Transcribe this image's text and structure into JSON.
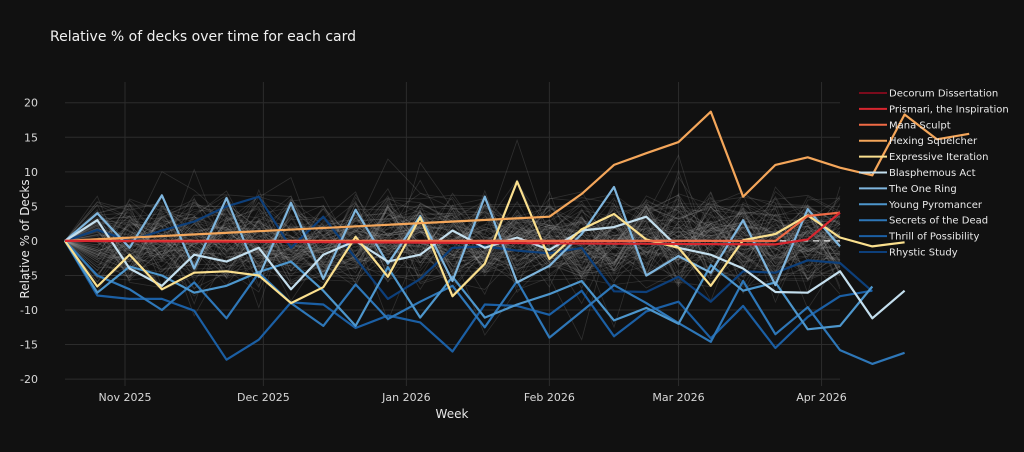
{
  "chart_data": {
    "type": "line",
    "title": "Relative  % of decks over time for each card",
    "xlabel": "Week",
    "ylabel": "Relative % of Decks",
    "x_start": "2025-10-19",
    "x_end": "2026-04-05",
    "xlim": [
      "2025-10-19",
      "2026-04-05"
    ],
    "ylim": [
      -21,
      23
    ],
    "x_ticks": [
      {
        "date": "2025-11-01",
        "label": "Nov 2025"
      },
      {
        "date": "2025-12-01",
        "label": "Dec 2025"
      },
      {
        "date": "2026-01-01",
        "label": "Jan 2026"
      },
      {
        "date": "2026-02-01",
        "label": "Feb 2026"
      },
      {
        "date": "2026-03-01",
        "label": "Mar 2026"
      },
      {
        "date": "2026-04-01",
        "label": "Apr 2026"
      }
    ],
    "y_ticks": [
      20,
      15,
      10,
      5,
      0,
      -5,
      -10,
      -15,
      -20
    ],
    "grid": true,
    "zero_line": "dashed",
    "legend_position": "right",
    "background_series": {
      "count": 90,
      "color": "#9a9a9a",
      "description": "faint gray lines for all other cards"
    },
    "series": [
      {
        "name": "Decorum Dissertation",
        "color": "#7a0b1c",
        "values": [
          0,
          null,
          null,
          null,
          null,
          null,
          null,
          null,
          null,
          null,
          null,
          null,
          null,
          null,
          null,
          null,
          null,
          null,
          null,
          null,
          null,
          null,
          null,
          null,
          null
        ]
      },
      {
        "name": "Prismari, the Inspiration",
        "color": "#d7262f",
        "values": [
          0,
          null,
          null,
          null,
          null,
          null,
          null,
          null,
          null,
          null,
          null,
          null,
          null,
          null,
          null,
          null,
          null,
          null,
          null,
          null,
          null,
          null,
          -0.5,
          0.2,
          4.1
        ]
      },
      {
        "name": "Mana Sculpt",
        "color": "#ef6a45",
        "values": [
          0,
          null,
          null,
          null,
          null,
          null,
          null,
          null,
          null,
          null,
          null,
          null,
          null,
          null,
          null,
          null,
          null,
          null,
          null,
          null,
          null,
          null,
          0,
          3.6,
          4.1
        ]
      },
      {
        "name": "Hexing Squelcher",
        "color": "#f4a65a",
        "values": [
          0,
          null,
          null,
          null,
          null,
          null,
          null,
          null,
          null,
          null,
          null,
          null,
          null,
          null,
          null,
          3.5,
          6.8,
          11,
          12.7,
          14.3,
          18.7,
          6.4,
          11,
          12.1,
          10.6,
          9.5,
          18.3,
          14.7,
          15.5
        ]
      },
      {
        "name": "Expressive Iteration",
        "color": "#fbe08e",
        "values": [
          0,
          -6.6,
          -2,
          -7,
          -4.6,
          -4.4,
          -5,
          -9,
          -6.7,
          0.6,
          -5.2,
          3.4,
          -8,
          -3.3,
          8.6,
          -2.6,
          1.7,
          3.9,
          0.2,
          -1,
          -6.5,
          0.1,
          1,
          3.7,
          0.5,
          -0.8,
          -0.2
        ]
      },
      {
        "name": "Blasphemous Act",
        "color": "#c4dfee",
        "values": [
          0,
          3,
          -4,
          -6.5,
          -2,
          -3,
          -1,
          -7,
          -2,
          0,
          -3,
          -2,
          1.5,
          -1,
          0.5,
          -1.3,
          1.5,
          2,
          3.5,
          -1,
          -2,
          -4,
          -7.4,
          -7.5,
          -4.4,
          -11.2,
          -7.2
        ]
      },
      {
        "name": "The One Ring",
        "color": "#7fb6de",
        "values": [
          0,
          4,
          -1,
          6.6,
          -4,
          6.2,
          -5.2,
          5.5,
          -5.5,
          4.5,
          -3.3,
          3.6,
          -5.8,
          6.4,
          -6,
          -3.6,
          1,
          7.8,
          -5,
          -2.2,
          -4.6,
          3,
          -6.4,
          4.6,
          -0.8
        ]
      },
      {
        "name": "Young Pyromancer",
        "color": "#4d96cc",
        "values": [
          0,
          -7.5,
          -3.7,
          -5,
          -7.5,
          -6.5,
          -4.5,
          -3,
          -7.2,
          -12.3,
          -3.8,
          -11.1,
          -5.2,
          -11.1,
          -9.2,
          -7.7,
          -5.8,
          -11.5,
          -9.7,
          -12,
          -3.5,
          -7.2,
          -6,
          -12.8,
          -12.3,
          -6.6
        ]
      },
      {
        "name": "Secrets of the Dead",
        "color": "#2e77b8",
        "values": [
          0,
          -5,
          -7,
          -10,
          -6,
          -11.2,
          -4.6,
          -9,
          -12.3,
          -6.3,
          -11.3,
          -8.8,
          -6.5,
          -12.5,
          -5.8,
          -14,
          -10.2,
          -6.4,
          -9,
          -11.9,
          -14.6,
          -5.8,
          -13.5,
          -9.6,
          -15.8,
          -17.8,
          -16.2
        ]
      },
      {
        "name": "Thrill of Possibility",
        "color": "#1b5fa4",
        "values": [
          0,
          -7.9,
          -8.4,
          -8.4,
          -10.1,
          -17.2,
          -14.3,
          -8.9,
          -9.2,
          -12.6,
          -10.8,
          -11.8,
          -16,
          -9.2,
          -9.4,
          -10.7,
          -7.2,
          -13.8,
          -10.2,
          -8.8,
          -14.1,
          -9.4,
          -15.5,
          -11,
          -8,
          -7.2
        ]
      },
      {
        "name": "Rhystic Study",
        "color": "#0d3f7a",
        "values": [
          0,
          1.6,
          0,
          1.5,
          2.8,
          5,
          6.4,
          -1,
          3.5,
          -2.5,
          -8.4,
          -5.5,
          -1,
          -0.8,
          -1.4,
          -1.8,
          -1,
          -7.3,
          -7.4,
          -5.2,
          -8.8,
          -4.4,
          -4.6,
          -2.8,
          -3.2,
          -7.3
        ]
      }
    ]
  }
}
